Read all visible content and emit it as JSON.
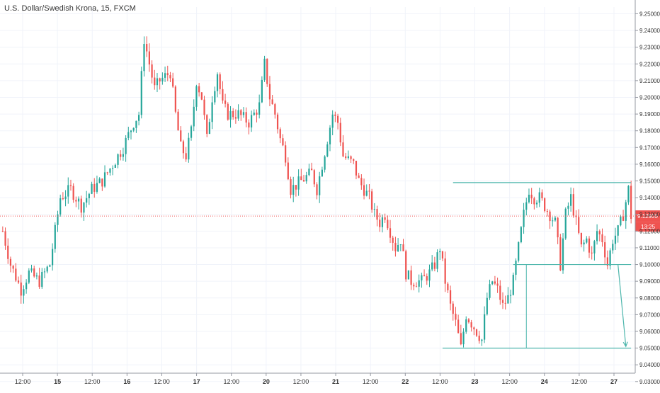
{
  "title": "U.S. Dollar/Swedish Krona, 15, FXCM",
  "colors": {
    "up": "#26a69a",
    "down": "#ef5350",
    "annotation": "#4db6ac",
    "price_line": "#ef5350",
    "axis_text": "#333333",
    "grid": "#f0f3fa"
  },
  "chart_data": {
    "type": "candlestick",
    "title": "U.S. Dollar/Swedish Krona, 15, FXCM",
    "interval": "15",
    "source": "FXCM",
    "ylim": [
      9.035,
      9.254
    ],
    "x_ticks": [
      "12:00",
      "15",
      "12:00",
      "16",
      "12:00",
      "17",
      "12:00",
      "20",
      "12:00",
      "21",
      "12:00",
      "22",
      "12:00",
      "23",
      "12:00",
      "24",
      "12:00",
      "27"
    ],
    "y_ticks": [
      "9.25000",
      "9.24000",
      "9.23000",
      "9.22000",
      "9.21000",
      "9.20000",
      "9.19000",
      "9.18000",
      "9.17000",
      "9.16000",
      "9.15000",
      "9.14000",
      "9.13000",
      "9.12000",
      "9.11000",
      "9.10000",
      "9.09000",
      "9.08000",
      "9.07000",
      "9.06000",
      "9.05000",
      "9.04000",
      "9.03000"
    ],
    "current_price": {
      "value": 9.129,
      "label": "9.12900",
      "countdown": "13:25"
    },
    "series": [
      {
        "close_path": [
          [
            0,
            9.12
          ],
          [
            3,
            9.1
          ],
          [
            7,
            9.085
          ],
          [
            10,
            9.095
          ],
          [
            14,
            9.09
          ],
          [
            18,
            9.1
          ],
          [
            22,
            9.14
          ],
          [
            26,
            9.145
          ],
          [
            30,
            9.135
          ],
          [
            34,
            9.145
          ],
          [
            38,
            9.15
          ],
          [
            42,
            9.16
          ],
          [
            46,
            9.17
          ],
          [
            50,
            9.185
          ],
          [
            52,
            9.19
          ],
          [
            54,
            9.235
          ],
          [
            56,
            9.22
          ],
          [
            58,
            9.205
          ],
          [
            60,
            9.21
          ],
          [
            64,
            9.215
          ],
          [
            66,
            9.19
          ],
          [
            68,
            9.17
          ],
          [
            70,
            9.165
          ],
          [
            72,
            9.18
          ],
          [
            74,
            9.21
          ],
          [
            76,
            9.2
          ],
          [
            78,
            9.175
          ],
          [
            80,
            9.2
          ],
          [
            82,
            9.215
          ],
          [
            84,
            9.195
          ],
          [
            86,
            9.19
          ],
          [
            90,
            9.19
          ],
          [
            94,
            9.185
          ],
          [
            98,
            9.195
          ],
          [
            100,
            9.22
          ],
          [
            102,
            9.2
          ],
          [
            104,
            9.19
          ],
          [
            106,
            9.175
          ],
          [
            108,
            9.165
          ],
          [
            110,
            9.145
          ],
          [
            114,
            9.15
          ],
          [
            118,
            9.155
          ],
          [
            120,
            9.145
          ],
          [
            124,
            9.175
          ],
          [
            126,
            9.19
          ],
          [
            128,
            9.185
          ],
          [
            130,
            9.165
          ],
          [
            134,
            9.16
          ],
          [
            136,
            9.15
          ],
          [
            138,
            9.145
          ],
          [
            140,
            9.14
          ],
          [
            142,
            9.13
          ],
          [
            144,
            9.125
          ],
          [
            146,
            9.13
          ],
          [
            150,
            9.11
          ],
          [
            152,
            9.115
          ],
          [
            154,
            9.095
          ],
          [
            156,
            9.09
          ],
          [
            158,
            9.09
          ],
          [
            160,
            9.09
          ],
          [
            163,
            9.095
          ],
          [
            165,
            9.1
          ],
          [
            167,
            9.11
          ],
          [
            169,
            9.09
          ],
          [
            171,
            9.075
          ],
          [
            173,
            9.065
          ],
          [
            175,
            9.05
          ],
          [
            177,
            9.07
          ],
          [
            179,
            9.065
          ],
          [
            181,
            9.06
          ],
          [
            183,
            9.055
          ],
          [
            185,
            9.08
          ],
          [
            187,
            9.09
          ],
          [
            189,
            9.085
          ],
          [
            191,
            9.075
          ],
          [
            193,
            9.08
          ],
          [
            195,
            9.09
          ],
          [
            197,
            9.11
          ],
          [
            199,
            9.13
          ],
          [
            201,
            9.145
          ],
          [
            203,
            9.14
          ],
          [
            205,
            9.14
          ],
          [
            207,
            9.135
          ],
          [
            209,
            9.13
          ],
          [
            211,
            9.125
          ],
          [
            213,
            9.1
          ],
          [
            215,
            9.13
          ],
          [
            217,
            9.14
          ],
          [
            219,
            9.125
          ],
          [
            221,
            9.11
          ],
          [
            223,
            9.115
          ],
          [
            225,
            9.105
          ],
          [
            227,
            9.12
          ],
          [
            229,
            9.115
          ],
          [
            231,
            9.1
          ],
          [
            233,
            9.115
          ],
          [
            235,
            9.12
          ],
          [
            237,
            9.13
          ],
          [
            239,
            9.145
          ],
          [
            240,
            9.129
          ]
        ]
      }
    ],
    "annotations": {
      "resistance": {
        "value": 9.149,
        "from": 172,
        "to": 240
      },
      "support": {
        "value": 9.1,
        "from": 195,
        "to": 240
      },
      "target": {
        "value": 9.05,
        "from": 168,
        "to": 240
      },
      "measure_x": 200,
      "arrow": {
        "from": [
          235,
          9.1
        ],
        "to": [
          238,
          9.051
        ]
      }
    }
  }
}
